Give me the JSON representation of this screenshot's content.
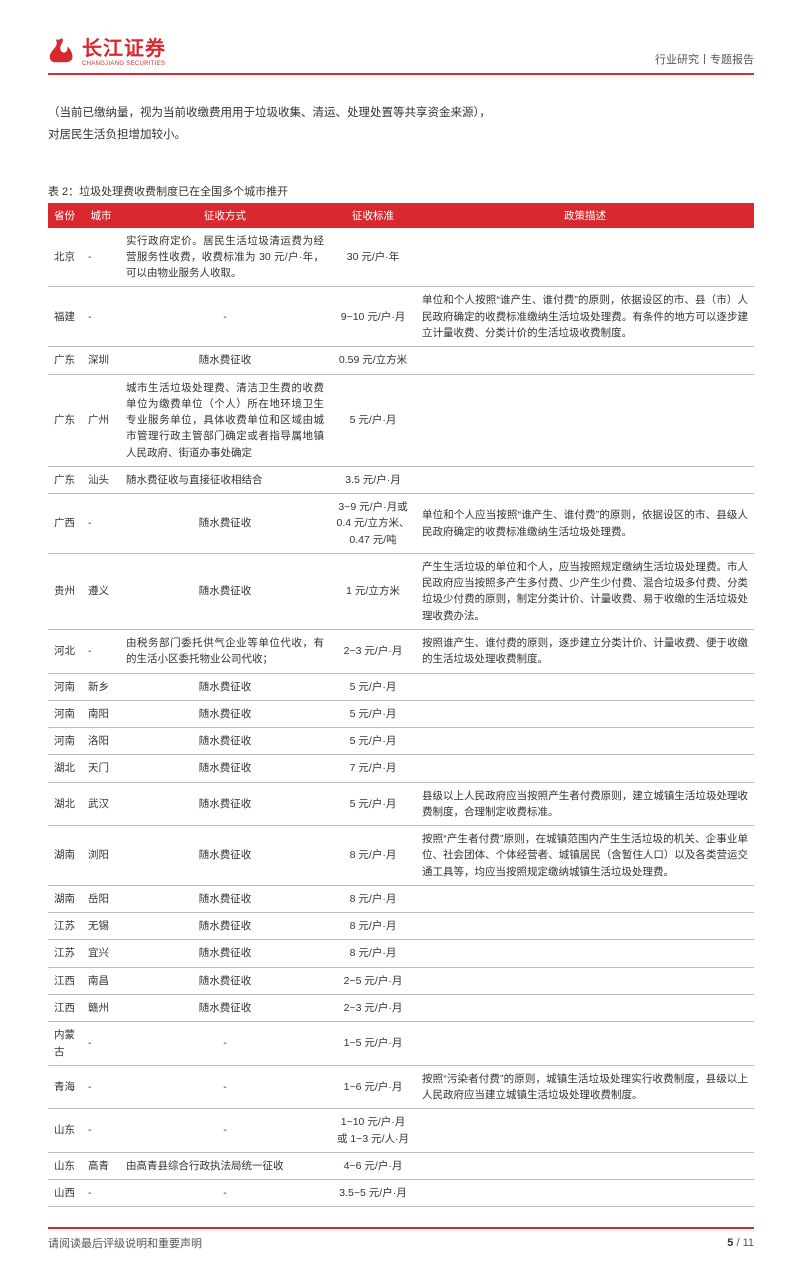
{
  "brand": {
    "cn": "长江证券",
    "en": "CHANGJIANG SECURITIES",
    "color": "#d7292e"
  },
  "header_right": "行业研究丨专题报告",
  "intro_line1": "（当前已缴纳量，视为当前收缴费用用于垃圾收集、清运、处理处置等共享资金来源），",
  "intro_line2": "对居民生活负担增加较小。",
  "table_caption": "表 2：垃圾处理费收费制度已在全国多个城市推开",
  "columns": [
    "省份",
    "城市",
    "征收方式",
    "征收标准",
    "政策描述"
  ],
  "rows": [
    {
      "prov": "北京",
      "city": "-",
      "method": "实行政府定价。居民生活垃圾清运费为经营服务性收费，收费标准为 30 元/户·年，可以由物业服务人收取。",
      "std": "30 元/户·年",
      "desc": ""
    },
    {
      "prov": "福建",
      "city": "-",
      "method": "-",
      "std": "9~10 元/户·月",
      "desc": "单位和个人按照“谁产生、谁付费”的原则，依据设区的市、县（市）人民政府确定的收费标准缴纳生活垃圾处理费。有条件的地方可以逐步建立计量收费、分类计价的生活垃圾收费制度。"
    },
    {
      "prov": "广东",
      "city": "深圳",
      "method": "随水费征收",
      "std": "0.59 元/立方米",
      "desc": ""
    },
    {
      "prov": "广东",
      "city": "广州",
      "method": "城市生活垃圾处理费、清洁卫生费的收费单位为缴费单位（个人）所在地环境卫生专业服务单位，具体收费单位和区域由城市管理行政主管部门确定或者指导属地镇人民政府、街道办事处确定",
      "std": "5 元/户·月",
      "desc": ""
    },
    {
      "prov": "广东",
      "city": "汕头",
      "method": "随水费征收与直接征收相结合",
      "std": "3.5 元/户·月",
      "desc": ""
    },
    {
      "prov": "广西",
      "city": "-",
      "method": "随水费征收",
      "std": "3~9 元/户·月或 0.4 元/立方米、0.47 元/吨",
      "desc": "单位和个人应当按照“谁产生、谁付费”的原则，依据设区的市、县级人民政府确定的收费标准缴纳生活垃圾处理费。"
    },
    {
      "prov": "贵州",
      "city": "遵义",
      "method": "随水费征收",
      "std": "1 元/立方米",
      "desc": "产生生活垃圾的单位和个人，应当按照规定缴纳生活垃圾处理费。市人民政府应当按照多产生多付费、少产生少付费、混合垃圾多付费、分类垃圾少付费的原则，制定分类计价、计量收费、易于收缴的生活垃圾处理收费办法。"
    },
    {
      "prov": "河北",
      "city": "-",
      "method": "由税务部门委托供气企业等单位代收，有的生活小区委托物业公司代收；",
      "std": "2~3 元/户·月",
      "desc": "按照谁产生、谁付费的原则，逐步建立分类计价、计量收费、便于收缴的生活垃圾处理收费制度。"
    },
    {
      "prov": "河南",
      "city": "新乡",
      "method": "随水费征收",
      "std": "5 元/户·月",
      "desc": ""
    },
    {
      "prov": "河南",
      "city": "南阳",
      "method": "随水费征收",
      "std": "5 元/户·月",
      "desc": ""
    },
    {
      "prov": "河南",
      "city": "洛阳",
      "method": "随水费征收",
      "std": "5 元/户·月",
      "desc": ""
    },
    {
      "prov": "湖北",
      "city": "天门",
      "method": "随水费征收",
      "std": "7 元/户·月",
      "desc": ""
    },
    {
      "prov": "湖北",
      "city": "武汉",
      "method": "随水费征收",
      "std": "5 元/户·月",
      "desc": "县级以上人民政府应当按照产生者付费原则，建立城镇生活垃圾处理收费制度，合理制定收费标准。"
    },
    {
      "prov": "湖南",
      "city": "浏阳",
      "method": "随水费征收",
      "std": "8 元/户·月",
      "desc": "按照“产生者付费”原则，在城镇范围内产生生活垃圾的机关、企事业单位、社会团体、个体经营者、城镇居民（含暂住人口）以及各类营运交通工具等，均应当按照规定缴纳城镇生活垃圾处理费。"
    },
    {
      "prov": "湖南",
      "city": "岳阳",
      "method": "随水费征收",
      "std": "8 元/户·月",
      "desc": ""
    },
    {
      "prov": "江苏",
      "city": "无锡",
      "method": "随水费征收",
      "std": "8 元/户·月",
      "desc": ""
    },
    {
      "prov": "江苏",
      "city": "宜兴",
      "method": "随水费征收",
      "std": "8 元/户·月",
      "desc": ""
    },
    {
      "prov": "江西",
      "city": "南昌",
      "method": "随水费征收",
      "std": "2~5 元/户·月",
      "desc": ""
    },
    {
      "prov": "江西",
      "city": "赣州",
      "method": "随水费征收",
      "std": "2~3 元/户·月",
      "desc": ""
    },
    {
      "prov": "内蒙古",
      "city": "-",
      "method": "-",
      "std": "1~5 元/户·月",
      "desc": ""
    },
    {
      "prov": "青海",
      "city": "-",
      "method": "-",
      "std": "1~6 元/户·月",
      "desc": "按照“污染者付费”的原则，城镇生活垃圾处理实行收费制度，县级以上人民政府应当建立城镇生活垃圾处理收费制度。"
    },
    {
      "prov": "山东",
      "city": "-",
      "method": "-",
      "std": "1~10 元/户·月或 1~3 元/人·月",
      "desc": ""
    },
    {
      "prov": "山东",
      "city": "高青",
      "method": "由高青县综合行政执法局统一征收",
      "std": "4~6 元/户·月",
      "desc": ""
    },
    {
      "prov": "山西",
      "city": "-",
      "method": "-",
      "std": "3.5~5 元/户·月",
      "desc": ""
    }
  ],
  "footer_left": "请阅读最后评级说明和重要声明",
  "page_num": "5",
  "page_total": "11"
}
